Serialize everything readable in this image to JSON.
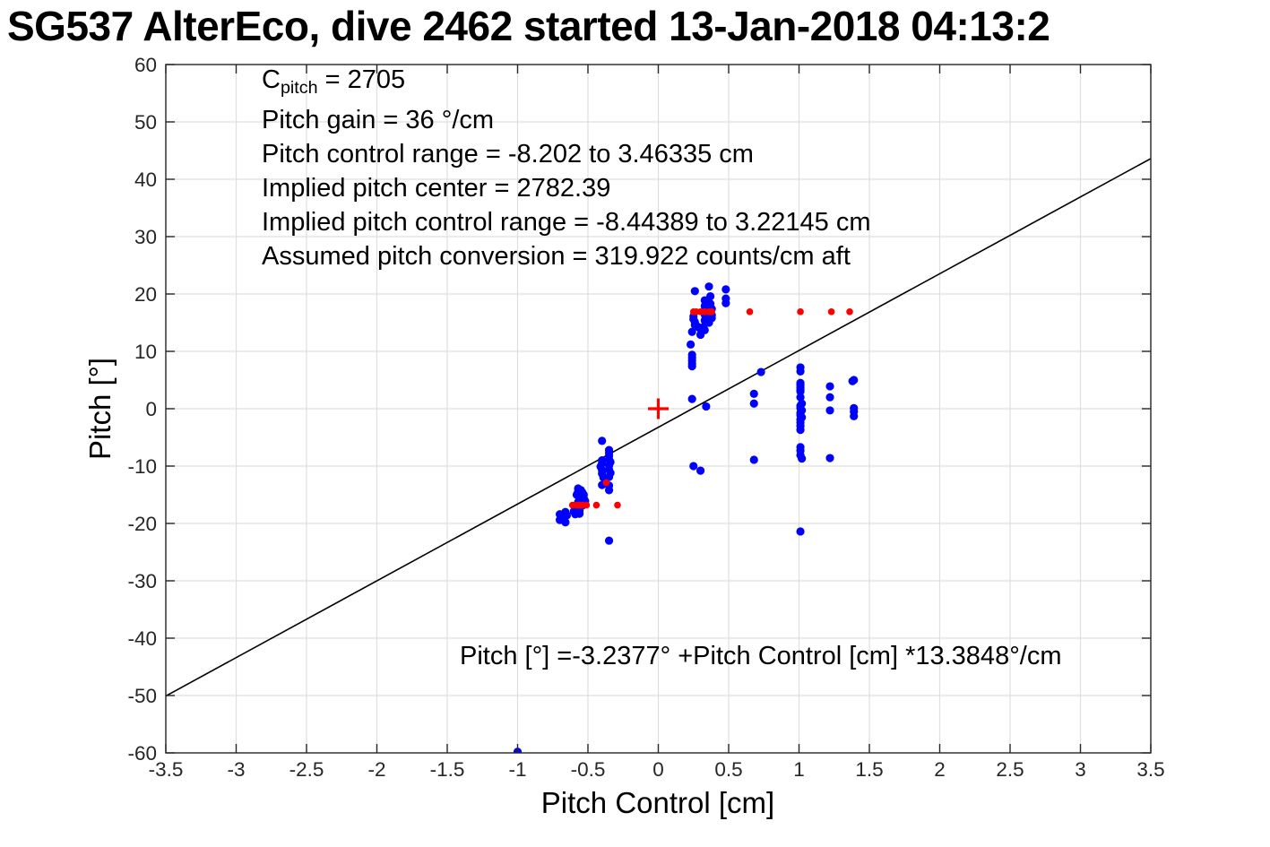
{
  "figure": {
    "title": "SG537 AlterEco, dive 2462 started 13-Jan-2018 04:13:2"
  },
  "annotations": {
    "cpitch": {
      "base": "C",
      "sub": "pitch",
      "rest": " = 2705"
    },
    "lines": [
      "Pitch gain = 36 °/cm",
      "Pitch control range = -8.202 to 3.46335 cm",
      "Implied pitch center = 2782.39",
      "Implied pitch control range = -8.44389 to 3.22145 cm",
      "Assumed pitch conversion = 319.922 counts/cm aft"
    ],
    "fit_equation": "Pitch [°] =-3.2377° +Pitch Control [cm] *13.3848°/cm"
  },
  "chart_data": {
    "type": "scatter",
    "title": "SG537 AlterEco, dive 2462 started 13-Jan-2018 04:13:2",
    "xlabel": "Pitch Control [cm]",
    "ylabel": "Pitch [°]",
    "xlim": [
      -3.5,
      3.5
    ],
    "ylim": [
      -60,
      60
    ],
    "grid": true,
    "legend": "none",
    "x_ticks": [
      "-3.5",
      "-3",
      "-2.5",
      "-2",
      "-1.5",
      "-1",
      "-0.5",
      "0",
      "0.5",
      "1",
      "1.5",
      "2",
      "2.5",
      "3",
      "3.5"
    ],
    "y_ticks": [
      "-60",
      "-50",
      "-40",
      "-30",
      "-20",
      "-10",
      "0",
      "10",
      "20",
      "30",
      "40",
      "50",
      "60"
    ],
    "colors": {
      "grid": "#dfdfdf",
      "axis": "#262626",
      "tick_label": "#262626",
      "observed_blue": "#0000ff",
      "commanded_red": "#ff0000",
      "fit_black": "#000000"
    },
    "fit_line": {
      "slope": 13.3848,
      "intercept": -3.2377
    },
    "series": [
      {
        "name": "observed-pitch",
        "marker": "dot",
        "size": 9.2,
        "color": "#0000ff",
        "points": [
          [
            -0.7,
            -18.4
          ],
          [
            -0.69,
            -18.9
          ],
          [
            -0.7,
            -19.4
          ],
          [
            -0.66,
            -18.0
          ],
          [
            -0.65,
            -18.6
          ],
          [
            -0.66,
            -19.8
          ],
          [
            -0.68,
            -19.3
          ],
          [
            -0.6,
            -17.9
          ],
          [
            -0.59,
            -18.4
          ],
          [
            -0.56,
            -17.8
          ],
          [
            -0.56,
            -18.3
          ],
          [
            -0.57,
            -13.9
          ],
          [
            -0.55,
            -14.2
          ],
          [
            -0.57,
            -14.5
          ],
          [
            -0.54,
            -14.6
          ],
          [
            -0.56,
            -14.8
          ],
          [
            -0.53,
            -15.0
          ],
          [
            -0.57,
            -15.2
          ],
          [
            -0.55,
            -15.4
          ],
          [
            -0.53,
            -15.6
          ],
          [
            -0.56,
            -15.8
          ],
          [
            -0.54,
            -16.0
          ],
          [
            -0.52,
            -16.1
          ],
          [
            -0.57,
            -16.3
          ],
          [
            -0.55,
            -16.5
          ],
          [
            -0.53,
            -16.6
          ],
          [
            -0.56,
            -16.8
          ],
          [
            -0.54,
            -16.9
          ],
          [
            -0.58,
            -15.0
          ],
          [
            -0.4,
            -5.6
          ],
          [
            -0.4,
            -9.0
          ],
          [
            -0.4,
            -9.5
          ],
          [
            -0.41,
            -10.1
          ],
          [
            -0.4,
            -10.7
          ],
          [
            -0.4,
            -11.3
          ],
          [
            -0.4,
            -13.3
          ],
          [
            -0.35,
            -7.2
          ],
          [
            -0.35,
            -7.7
          ],
          [
            -0.35,
            -8.2
          ],
          [
            -0.35,
            -8.8
          ],
          [
            -0.34,
            -9.3
          ],
          [
            -0.35,
            -9.9
          ],
          [
            -0.35,
            -10.6
          ],
          [
            -0.34,
            -11.2
          ],
          [
            -0.35,
            -11.9
          ],
          [
            -0.39,
            -12.0
          ],
          [
            -0.35,
            -13.4
          ],
          [
            -0.35,
            -14.2
          ],
          [
            -0.35,
            -23.0
          ],
          [
            -1.0,
            -59.8
          ],
          [
            0.26,
            20.5
          ],
          [
            0.36,
            21.3
          ],
          [
            0.37,
            19.6
          ],
          [
            0.48,
            20.8
          ],
          [
            0.48,
            19.2
          ],
          [
            0.48,
            18.4
          ],
          [
            0.33,
            18.9
          ],
          [
            0.35,
            18.6
          ],
          [
            0.37,
            18.3
          ],
          [
            0.33,
            17.9
          ],
          [
            0.36,
            17.7
          ],
          [
            0.38,
            17.4
          ],
          [
            0.34,
            17.2
          ],
          [
            0.37,
            17.0
          ],
          [
            0.33,
            16.4
          ],
          [
            0.35,
            16.1
          ],
          [
            0.38,
            16.3
          ],
          [
            0.38,
            15.8
          ],
          [
            0.36,
            15.6
          ],
          [
            0.33,
            15.4
          ],
          [
            0.36,
            15.0
          ],
          [
            0.25,
            16.1
          ],
          [
            0.25,
            15.6
          ],
          [
            0.26,
            15.1
          ],
          [
            0.26,
            14.6
          ],
          [
            0.28,
            14.3
          ],
          [
            0.3,
            13.9
          ],
          [
            0.32,
            14.2
          ],
          [
            0.33,
            13.7
          ],
          [
            0.24,
            13.4
          ],
          [
            0.3,
            12.9
          ],
          [
            0.23,
            11.2
          ],
          [
            0.24,
            9.4
          ],
          [
            0.24,
            8.9
          ],
          [
            0.24,
            8.4
          ],
          [
            0.24,
            7.9
          ],
          [
            0.24,
            7.4
          ],
          [
            0.24,
            1.7
          ],
          [
            0.34,
            0.4
          ],
          [
            0.25,
            -10.0
          ],
          [
            0.3,
            -10.8
          ],
          [
            0.68,
            2.6
          ],
          [
            0.68,
            0.9
          ],
          [
            0.68,
            -8.9
          ],
          [
            0.73,
            6.4
          ],
          [
            1.01,
            7.2
          ],
          [
            1.01,
            6.5
          ],
          [
            1.01,
            4.5
          ],
          [
            1.01,
            4.1
          ],
          [
            1.01,
            3.7
          ],
          [
            1.01,
            3.3
          ],
          [
            1.01,
            3.0
          ],
          [
            1.01,
            2.0
          ],
          [
            1.02,
            0.9
          ],
          [
            1.01,
            0.5
          ],
          [
            1.01,
            0.1
          ],
          [
            1.02,
            -0.3
          ],
          [
            1.01,
            -0.7
          ],
          [
            1.01,
            -1.1
          ],
          [
            1.02,
            -1.5
          ],
          [
            1.01,
            -1.9
          ],
          [
            1.01,
            -2.4
          ],
          [
            1.01,
            -3.0
          ],
          [
            1.01,
            -3.7
          ],
          [
            1.01,
            -6.7
          ],
          [
            1.01,
            -7.3
          ],
          [
            1.01,
            -8.1
          ],
          [
            1.02,
            -8.7
          ],
          [
            1.01,
            -21.4
          ],
          [
            1.22,
            3.9
          ],
          [
            1.22,
            2.0
          ],
          [
            1.22,
            -0.3
          ],
          [
            1.22,
            -8.6
          ],
          [
            1.39,
            5.0
          ],
          [
            1.38,
            4.8
          ],
          [
            1.39,
            0.1
          ],
          [
            1.39,
            -0.5
          ],
          [
            1.39,
            -1.3
          ]
        ]
      },
      {
        "name": "commanded-pitch",
        "marker": "dot",
        "size": 7.6,
        "color": "#ff0000",
        "points": [
          [
            -0.61,
            -16.8
          ],
          [
            -0.58,
            -16.8
          ],
          [
            -0.56,
            -16.8
          ],
          [
            -0.54,
            -16.8
          ],
          [
            -0.51,
            -16.8
          ],
          [
            -0.44,
            -16.8
          ],
          [
            -0.29,
            -16.8
          ],
          [
            -0.37,
            -12.9
          ],
          [
            0.25,
            16.9
          ],
          [
            0.27,
            16.9
          ],
          [
            0.3,
            16.9
          ],
          [
            0.33,
            16.9
          ],
          [
            0.36,
            16.9
          ],
          [
            0.38,
            16.9
          ],
          [
            0.65,
            16.9
          ],
          [
            1.01,
            16.9
          ],
          [
            1.23,
            16.9
          ],
          [
            1.36,
            16.9
          ]
        ]
      },
      {
        "name": "pitch-center",
        "marker": "plus",
        "size": 23,
        "color": "#ff0000",
        "points": [
          [
            0,
            0
          ]
        ]
      }
    ]
  }
}
